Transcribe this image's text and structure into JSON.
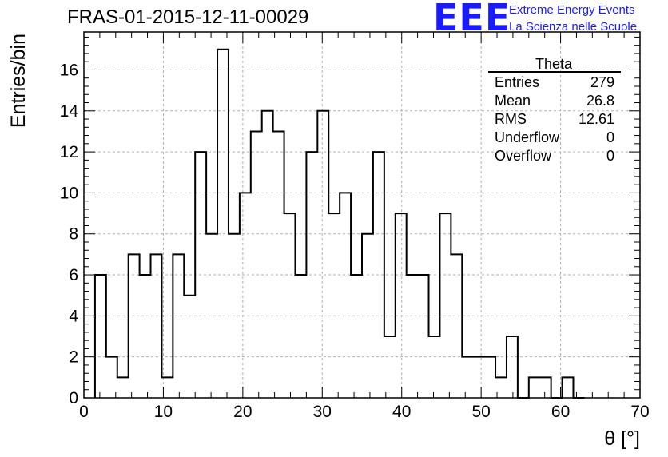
{
  "header": {
    "title": "FRAS-01-2015-12-11-00029",
    "logo_text": "EEE",
    "org_line1": "Extreme Energy Events",
    "org_line2": "La Scienza nelle Scuole"
  },
  "colors": {
    "logo": "#1a1aff",
    "grid": "#b0b0b0",
    "line": "#000000"
  },
  "stats_box": {
    "title": "Theta",
    "rows": [
      {
        "label": "Entries",
        "value": "279"
      },
      {
        "label": "Mean",
        "value": "26.8"
      },
      {
        "label": "RMS",
        "value": "12.61"
      },
      {
        "label": "Underflow",
        "value": "0"
      },
      {
        "label": "Overflow",
        "value": "0"
      }
    ]
  },
  "chart_data": {
    "type": "histogram",
    "title": "FRAS-01-2015-12-11-00029",
    "xlabel": "θ [°]",
    "ylabel": "Entries/bin",
    "xlim": [
      0,
      70
    ],
    "ylim": [
      0,
      17.85
    ],
    "bin_width": 1.4,
    "first_bin_edge": 1.4,
    "values": [
      6,
      2,
      1,
      7,
      6,
      7,
      1,
      7,
      5,
      12,
      8,
      17,
      8,
      10,
      13,
      14,
      13,
      9,
      6,
      12,
      14,
      9,
      10,
      6,
      8,
      12,
      3,
      9,
      6,
      6,
      3,
      9,
      7,
      2,
      2,
      2,
      1,
      3,
      0,
      1,
      1,
      0,
      1,
      0
    ],
    "xticks": [
      "0",
      "10",
      "20",
      "30",
      "40",
      "50",
      "60",
      "70"
    ],
    "yticks": [
      "0",
      "2",
      "4",
      "6",
      "8",
      "10",
      "12",
      "14",
      "16"
    ],
    "grid": true
  }
}
